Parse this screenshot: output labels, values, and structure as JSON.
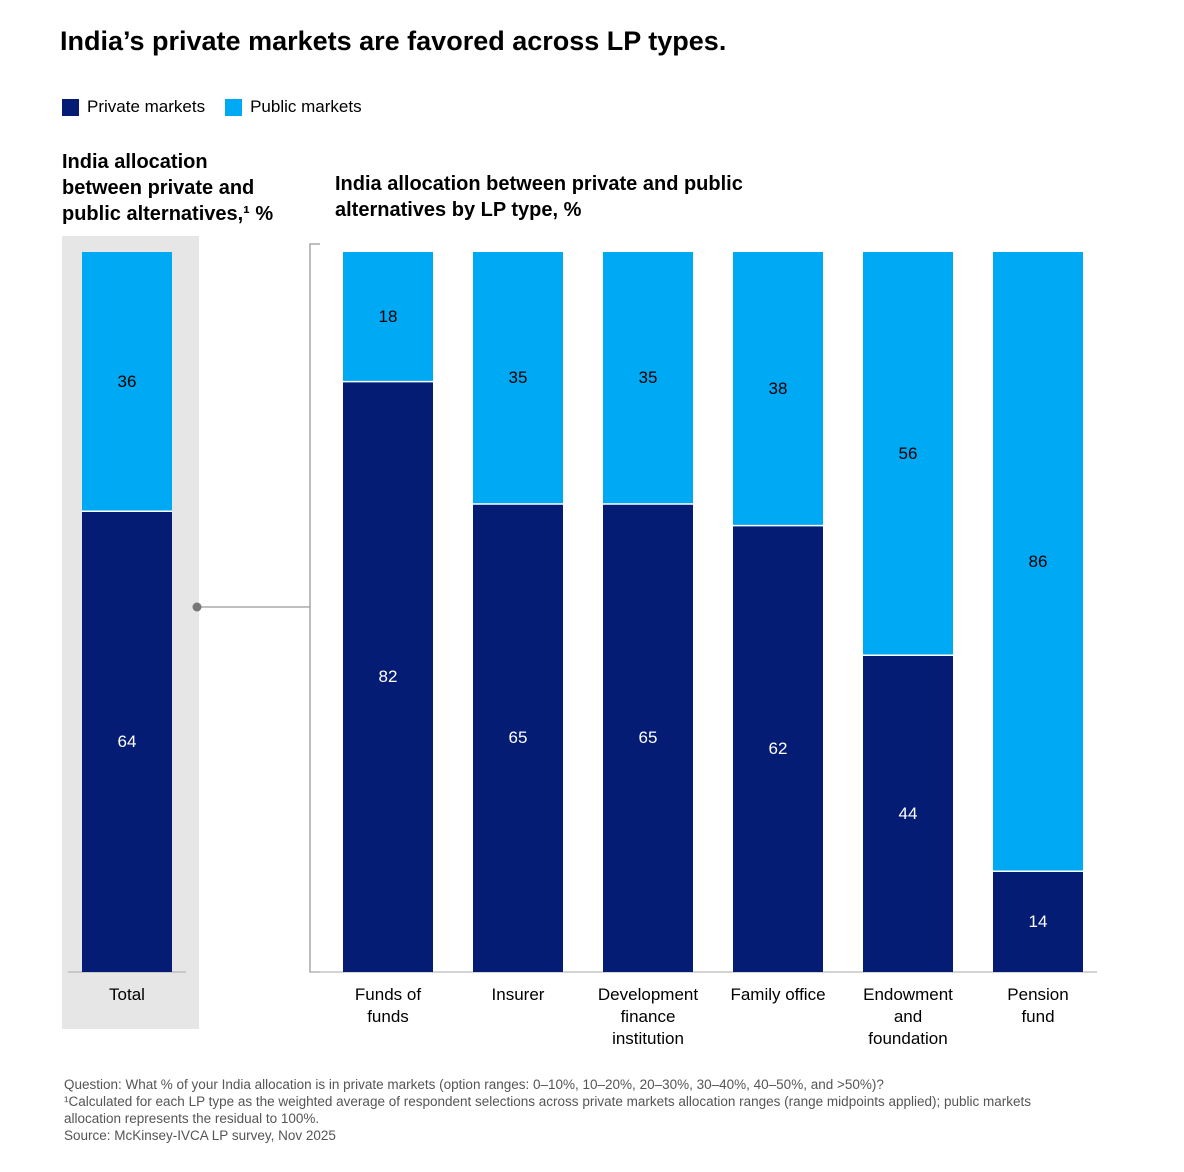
{
  "title": "India’s private markets are favored across LP types.",
  "chart_data": [
    {
      "type": "stacked_bar",
      "title": "India allocation between private and public alternatives,¹ %",
      "categories": [
        "Total"
      ],
      "series": [
        {
          "name": "Private markets",
          "color": "#051c75",
          "values": [
            64
          ]
        },
        {
          "name": "Public markets",
          "color": "#00a9f4",
          "values": [
            36
          ]
        }
      ],
      "ylim": [
        0,
        100
      ]
    },
    {
      "type": "stacked_bar",
      "title": "India allocation between private and public alternatives by LP type, %",
      "categories": [
        "Funds of\nfunds",
        "Insurer",
        "Development\nfinance\ninstitution",
        "Family office",
        "Endowment\nand\nfoundation",
        "Pension\nfund"
      ],
      "series": [
        {
          "name": "Private markets",
          "color": "#051c75",
          "values": [
            82,
            65,
            65,
            62,
            44,
            14
          ]
        },
        {
          "name": "Public markets",
          "color": "#00a9f4",
          "values": [
            18,
            35,
            35,
            38,
            56,
            86
          ]
        }
      ],
      "ylim": [
        0,
        100
      ]
    }
  ],
  "notes": [
    "Question: What % of your India allocation is in private markets (option ranges: 0–10%, 10–20%, 20–30%, 30–40%, 40–50%, and >50%)?",
    "¹Calculated for each LP type as the weighted average of respondent selections across private markets allocation ranges (range midpoints applied); public markets allocation represents the residual to 100%.",
    "Source: McKinsey-IVCA LP survey, Nov 2025"
  ]
}
